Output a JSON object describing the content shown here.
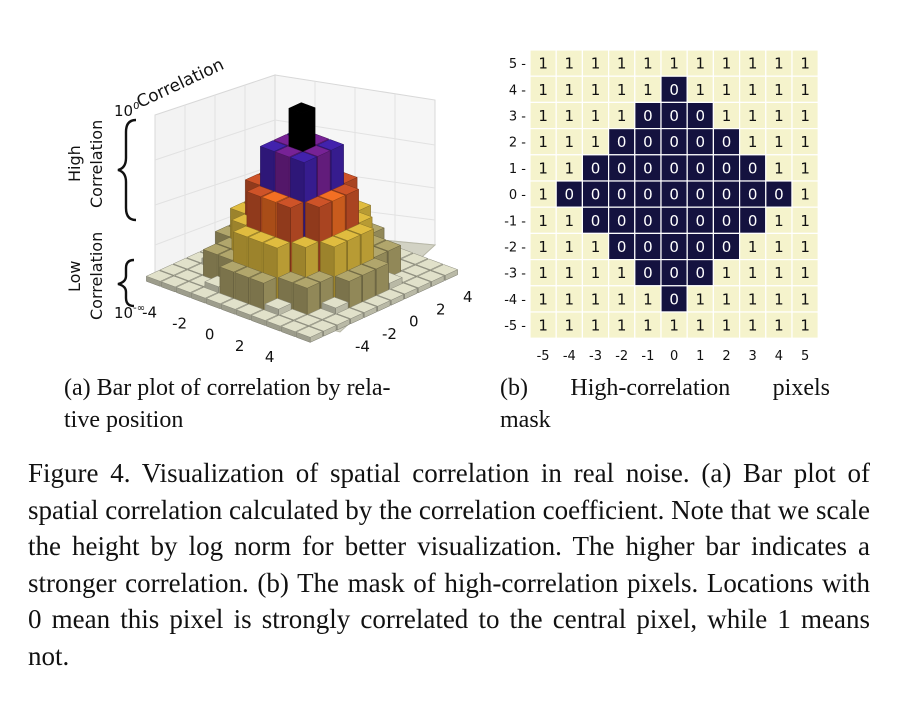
{
  "panel_a": {
    "caption": "(a) Bar plot of correlation by relative position",
    "caption_lines": [
      "(a) Bar plot of correlation by rela-",
      "tive position"
    ],
    "z_axis_title": "Correlation",
    "z_tick_top": "10",
    "z_tick_top_sup": "0",
    "z_tick_bottom": "10",
    "z_tick_bottom_sup": "-∞",
    "high_label_1": "High",
    "high_label_2": "Correlation",
    "low_label_1": "Low",
    "low_label_2": "Correlation",
    "colors": {
      "black": "#000000",
      "purple": "#3b1e9a",
      "violet": "#6a1e86",
      "orange": "#d9631f",
      "rust": "#b84a24",
      "yellow": "#c8a838",
      "olive": "#9e9460",
      "floor": "#c9c9b4"
    }
  },
  "panel_b": {
    "caption": "(b) High-correlation pixels mask",
    "caption_line1_words": [
      "(b)",
      "High-correlation",
      "pixels"
    ],
    "caption_line2": "mask",
    "colors": {
      "one_fill": "#f5f3cc",
      "zero_fill": "#14123f",
      "one_text": "#111111",
      "zero_text": "#ffffff"
    }
  },
  "chart_data": [
    {
      "type": "bar",
      "subtype": "3d-bar",
      "title": "",
      "zlabel": "Correlation",
      "zscale": "log-norm",
      "x_ticks": [
        "-4",
        "-2",
        "0",
        "2",
        "4"
      ],
      "y_ticks": [
        "4",
        "2",
        "0",
        "-2",
        "-4"
      ],
      "z_ticks": [
        "10^-∞",
        "10^0"
      ],
      "description_levels": [
        "Low Correlation",
        "High Correlation"
      ],
      "peak_position": [
        0,
        0
      ],
      "relative_height_by_distance": [
        {
          "distance": 0,
          "height": 1.0
        },
        {
          "distance": 1,
          "height": 0.78
        },
        {
          "distance": 2,
          "height": 0.55
        },
        {
          "distance": 3,
          "height": 0.35
        },
        {
          "distance": 4,
          "height": 0.18
        },
        {
          "distance": 5,
          "height": 0.06
        }
      ]
    },
    {
      "type": "heatmap",
      "title": "",
      "x_ticks": [
        -5,
        -4,
        -3,
        -2,
        -1,
        0,
        1,
        2,
        3,
        4,
        5
      ],
      "y_ticks": [
        5,
        4,
        3,
        2,
        1,
        0,
        -1,
        -2,
        -3,
        -4,
        -5
      ],
      "values": [
        [
          1,
          1,
          1,
          1,
          1,
          1,
          1,
          1,
          1,
          1,
          1
        ],
        [
          1,
          1,
          1,
          1,
          1,
          0,
          1,
          1,
          1,
          1,
          1
        ],
        [
          1,
          1,
          1,
          1,
          0,
          0,
          0,
          1,
          1,
          1,
          1
        ],
        [
          1,
          1,
          1,
          0,
          0,
          0,
          0,
          0,
          1,
          1,
          1
        ],
        [
          1,
          1,
          0,
          0,
          0,
          0,
          0,
          0,
          0,
          1,
          1
        ],
        [
          1,
          0,
          0,
          0,
          0,
          0,
          0,
          0,
          0,
          0,
          1
        ],
        [
          1,
          1,
          0,
          0,
          0,
          0,
          0,
          0,
          0,
          1,
          1
        ],
        [
          1,
          1,
          1,
          0,
          0,
          0,
          0,
          0,
          1,
          1,
          1
        ],
        [
          1,
          1,
          1,
          1,
          0,
          0,
          0,
          1,
          1,
          1,
          1
        ],
        [
          1,
          1,
          1,
          1,
          1,
          0,
          1,
          1,
          1,
          1,
          1
        ],
        [
          1,
          1,
          1,
          1,
          1,
          1,
          1,
          1,
          1,
          1,
          1
        ]
      ]
    }
  ],
  "figure_caption": "Figure 4. Visualization of spatial correlation in real noise. (a) Bar plot of spatial correlation calculated by the correlation coefficient. Note that we scale the height by log norm for better visualization. The higher bar indicates a stronger correlation. (b) The mask of high-correlation pixels. Locations with 0 mean this pixel is strongly correlated to the central pixel, while 1 means not."
}
